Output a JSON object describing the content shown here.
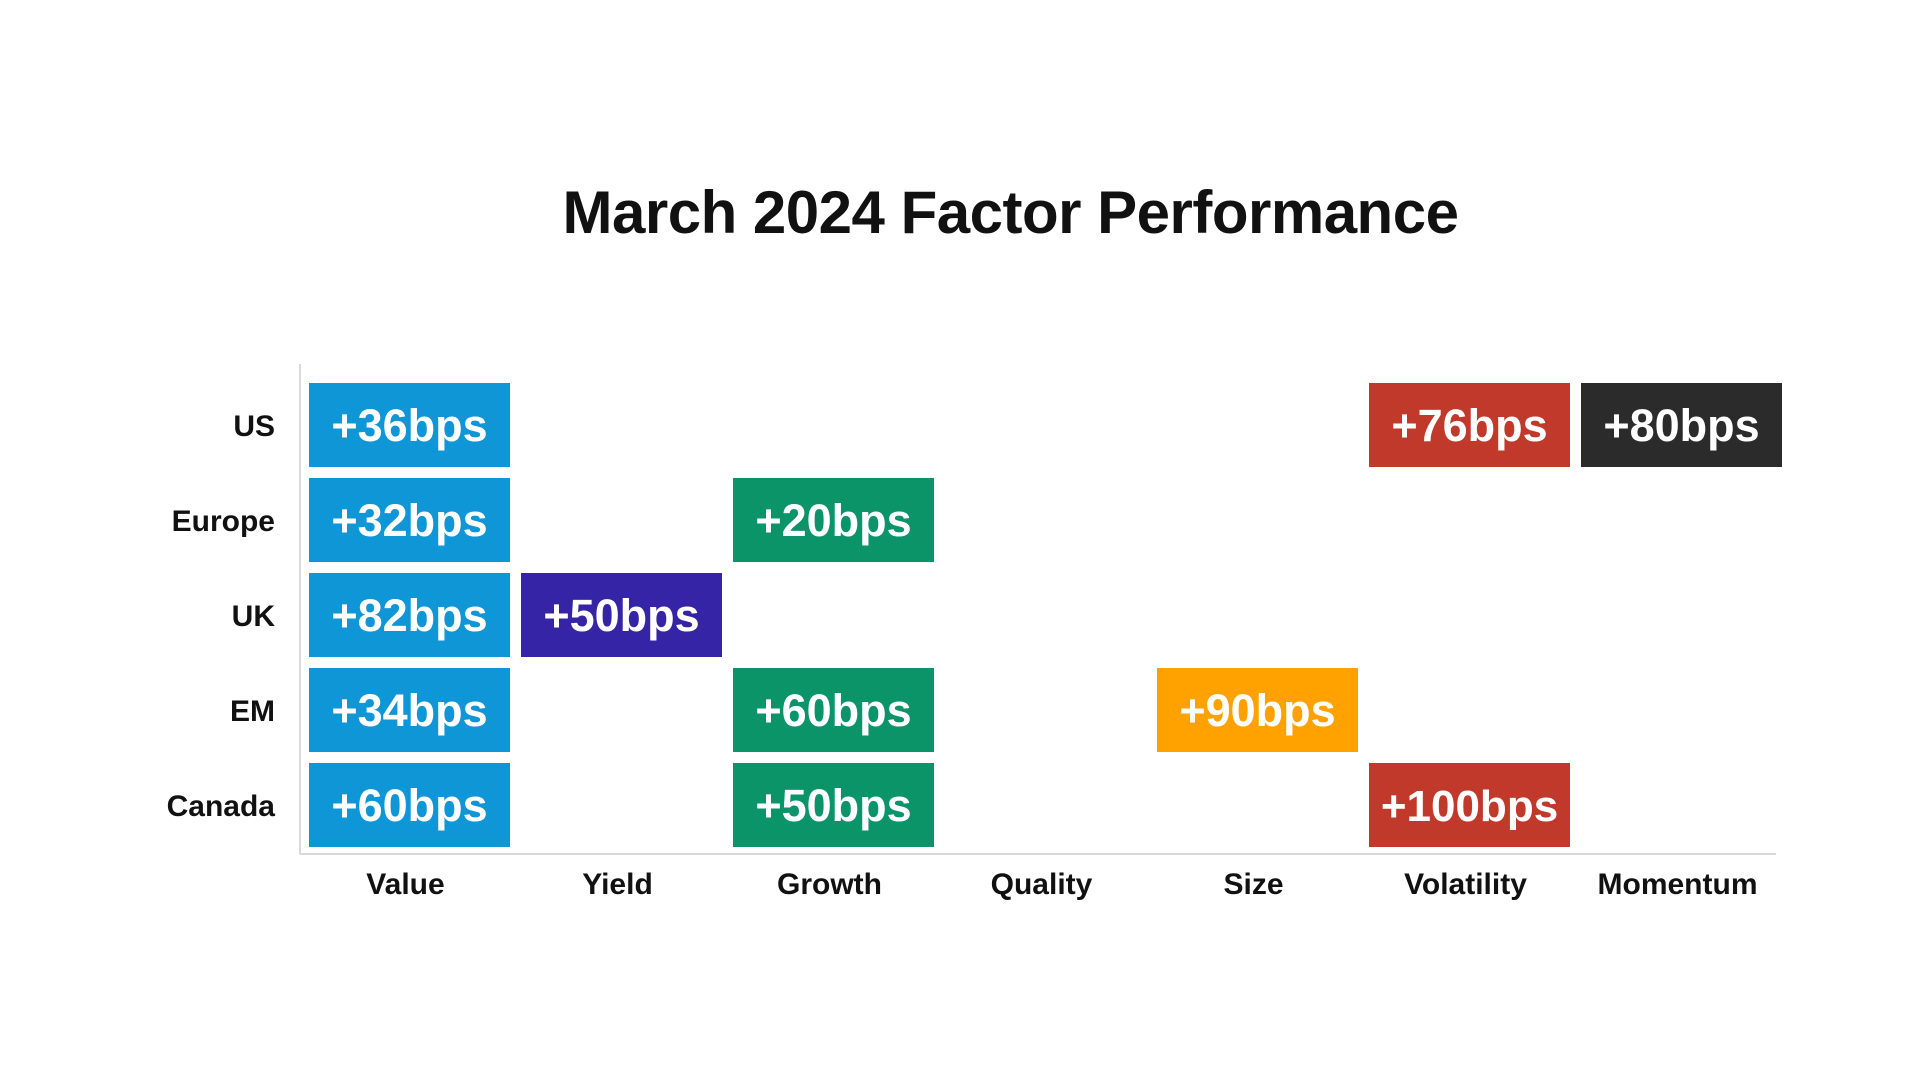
{
  "chart_data": {
    "type": "heatmap",
    "title": "March 2024 Factor Performance",
    "xlabel": "",
    "ylabel": "",
    "x_categories": [
      "Value",
      "Yield",
      "Growth",
      "Quality",
      "Size",
      "Volatility",
      "Momentum"
    ],
    "y_categories": [
      "US",
      "Europe",
      "UK",
      "EM",
      "Canada"
    ],
    "grid": false,
    "legend": "none",
    "cells": [
      {
        "row": "US",
        "col": "Value",
        "label": "+36bps",
        "value": 36,
        "color": "#0f96d6"
      },
      {
        "row": "US",
        "col": "Volatility",
        "label": "+76bps",
        "value": 76,
        "color": "#c0392b"
      },
      {
        "row": "US",
        "col": "Momentum",
        "label": "+80bps",
        "value": 80,
        "color": "#2b2b2b"
      },
      {
        "row": "Europe",
        "col": "Value",
        "label": "+32bps",
        "value": 32,
        "color": "#0f96d6"
      },
      {
        "row": "Europe",
        "col": "Growth",
        "label": "+20bps",
        "value": 20,
        "color": "#0a9467"
      },
      {
        "row": "UK",
        "col": "Value",
        "label": "+82bps",
        "value": 82,
        "color": "#0f96d6"
      },
      {
        "row": "UK",
        "col": "Yield",
        "label": "+50bps",
        "value": 50,
        "color": "#3524a6"
      },
      {
        "row": "EM",
        "col": "Value",
        "label": "+34bps",
        "value": 34,
        "color": "#0f96d6"
      },
      {
        "row": "EM",
        "col": "Growth",
        "label": "+60bps",
        "value": 60,
        "color": "#0a9467"
      },
      {
        "row": "EM",
        "col": "Size",
        "label": "+90bps",
        "value": 90,
        "color": "#ffa200"
      },
      {
        "row": "Canada",
        "col": "Value",
        "label": "+60bps",
        "value": 60,
        "color": "#0f96d6"
      },
      {
        "row": "Canada",
        "col": "Growth",
        "label": "+50bps",
        "value": 50,
        "color": "#0a9467"
      },
      {
        "row": "Canada",
        "col": "Volatility",
        "label": "+100bps",
        "value": 100,
        "color": "#c0392b"
      }
    ]
  },
  "colors": {
    "value": "#0f96d6",
    "yield": "#3524a6",
    "growth": "#0a9467",
    "size": "#ffa200",
    "volatility": "#c0392b",
    "momentum": "#2b2b2b",
    "axis_line": "#d9d9d9",
    "label_text": "#111111",
    "cell_text": "#ffffff"
  }
}
